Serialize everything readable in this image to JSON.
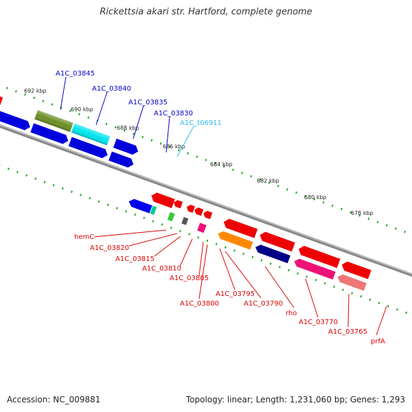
{
  "title": "Rickettsia akari str. Hartford, complete genome",
  "footer": {
    "accession": "Accession: NC_009881",
    "summary": "Topology: linear; Length: 1,231,060 bp; Genes: 1,293"
  },
  "scale": {
    "ticks_upper": [
      "692 kbp",
      "690 kbp",
      "688 kbp",
      "686 kbp"
    ],
    "ticks_lower": [
      "684 kbp",
      "682 kbp",
      "680 kbp",
      "678 kbp"
    ]
  },
  "colors": {
    "blue_label": "#0000cc",
    "cyan_label": "#33bbee",
    "red_label": "#dd0000"
  },
  "labels_upper": [
    "A1C_03845",
    "A1C_03840",
    "A1C_03835",
    "A1C_03830",
    "A1C_t06911"
  ],
  "labels_lower": [
    "hemC",
    "A1C_03820",
    "A1C_03815",
    "A1C_03810",
    "A1C_03805",
    "A1C_03800",
    "A1C_03795",
    "A1C_03790",
    "rho",
    "A1C_03770",
    "A1C_03765",
    "prfA"
  ]
}
